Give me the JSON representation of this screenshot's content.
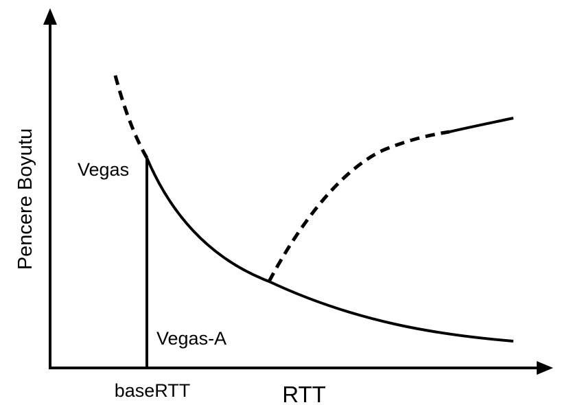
{
  "axes": {
    "y_label": "Pencere Boyutu",
    "x_label": "RTT",
    "x_tick_label": "baseRTT"
  },
  "curves": {
    "vegas_label": "Vegas",
    "vegas_a_label": "Vegas-A"
  },
  "colors": {
    "stroke": "#000000",
    "background": "#ffffff"
  }
}
